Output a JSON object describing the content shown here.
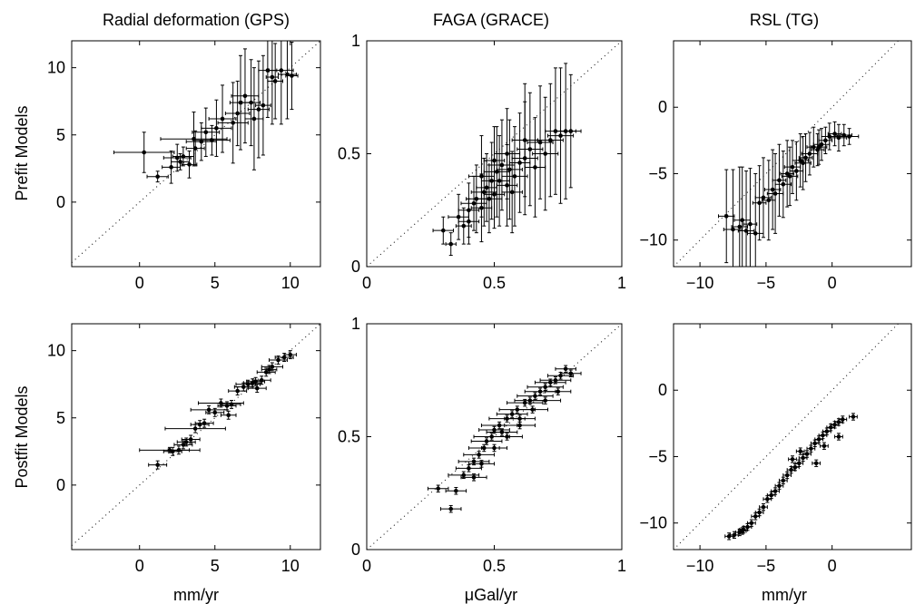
{
  "figure": {
    "row_labels": [
      "Prefit Models",
      "Postfit Models"
    ],
    "col_titles": [
      "Radial deformation (GPS)",
      "FAGA (GRACE)",
      "RSL (TG)"
    ],
    "x_labels": [
      "mm/yr",
      "μGal/yr",
      "mm/yr"
    ]
  },
  "chart_data": [
    {
      "type": "scatter",
      "panel": "prefit-gps",
      "row": 0,
      "col": 0,
      "title": "Radial deformation (GPS)",
      "ylabel": "Prefit Models",
      "xlabel": "",
      "xlim": [
        -4.5,
        12
      ],
      "ylim": [
        -4.8,
        12
      ],
      "xticks": [
        0,
        5,
        10
      ],
      "yticks": [
        0,
        5,
        10
      ],
      "one_to_one_line": true,
      "grid": false,
      "points": [
        [
          1.2,
          1.9,
          0.7,
          0.4
        ],
        [
          0.3,
          3.7,
          2.0,
          1.5
        ],
        [
          2.1,
          2.6,
          0.6,
          1.2
        ],
        [
          2.5,
          3.3,
          0.9,
          1.0
        ],
        [
          2.9,
          3.4,
          0.7,
          0.7
        ],
        [
          3.3,
          2.8,
          0.5,
          1.0
        ],
        [
          3.6,
          4.7,
          2.2,
          2.0
        ],
        [
          4.1,
          4.5,
          1.0,
          1.4
        ],
        [
          4.4,
          5.2,
          0.9,
          1.8
        ],
        [
          4.8,
          4.6,
          1.2,
          1.1
        ],
        [
          5.1,
          5.5,
          1.0,
          2.1
        ],
        [
          5.5,
          6.2,
          0.9,
          2.5
        ],
        [
          6.2,
          5.9,
          1.0,
          3.0
        ],
        [
          6.5,
          6.6,
          0.8,
          2.4
        ],
        [
          7.0,
          7.9,
          0.9,
          3.5
        ],
        [
          7.4,
          7.4,
          0.6,
          3.2
        ],
        [
          7.6,
          6.2,
          0.6,
          3.8
        ],
        [
          7.9,
          6.9,
          0.7,
          3.6
        ],
        [
          8.2,
          7.2,
          0.5,
          3.7
        ],
        [
          8.5,
          9.8,
          0.6,
          3.5
        ],
        [
          8.8,
          9.3,
          0.4,
          3.5
        ],
        [
          9.0,
          9.0,
          0.5,
          2.8
        ],
        [
          9.4,
          9.8,
          0.8,
          4.0
        ],
        [
          9.8,
          9.5,
          0.6,
          3.3
        ],
        [
          10.1,
          9.4,
          0.4,
          2.5
        ],
        [
          6.7,
          7.4,
          0.7,
          3.5
        ],
        [
          3.7,
          4.0,
          0.6,
          1.3
        ],
        [
          2.7,
          3.0,
          0.6,
          0.6
        ]
      ]
    },
    {
      "type": "scatter",
      "panel": "prefit-grace",
      "row": 0,
      "col": 1,
      "title": "FAGA (GRACE)",
      "ylabel": "",
      "xlabel": "",
      "xlim": [
        0,
        1
      ],
      "ylim": [
        0,
        1
      ],
      "xticks": [
        0,
        0.5,
        1
      ],
      "yticks": [
        0,
        0.5,
        1
      ],
      "ytick_labels": [
        "0",
        "0.5",
        "1"
      ],
      "xtick_labels": [
        "0",
        "0.5",
        "1"
      ],
      "one_to_one_line": true,
      "grid": false,
      "points": [
        [
          0.3,
          0.16,
          0.04,
          0.06
        ],
        [
          0.33,
          0.1,
          0.02,
          0.05
        ],
        [
          0.36,
          0.22,
          0.04,
          0.1
        ],
        [
          0.38,
          0.18,
          0.03,
          0.08
        ],
        [
          0.4,
          0.25,
          0.04,
          0.12
        ],
        [
          0.42,
          0.28,
          0.05,
          0.12
        ],
        [
          0.43,
          0.3,
          0.04,
          0.15
        ],
        [
          0.45,
          0.26,
          0.04,
          0.15
        ],
        [
          0.46,
          0.33,
          0.05,
          0.15
        ],
        [
          0.47,
          0.35,
          0.04,
          0.15
        ],
        [
          0.48,
          0.3,
          0.05,
          0.15
        ],
        [
          0.49,
          0.38,
          0.04,
          0.17
        ],
        [
          0.5,
          0.32,
          0.04,
          0.15
        ],
        [
          0.51,
          0.42,
          0.05,
          0.2
        ],
        [
          0.52,
          0.38,
          0.04,
          0.2
        ],
        [
          0.53,
          0.45,
          0.05,
          0.2
        ],
        [
          0.55,
          0.36,
          0.04,
          0.18
        ],
        [
          0.56,
          0.43,
          0.05,
          0.22
        ],
        [
          0.58,
          0.4,
          0.05,
          0.22
        ],
        [
          0.6,
          0.46,
          0.04,
          0.22
        ],
        [
          0.62,
          0.48,
          0.05,
          0.25
        ],
        [
          0.64,
          0.52,
          0.05,
          0.25
        ],
        [
          0.66,
          0.44,
          0.04,
          0.22
        ],
        [
          0.68,
          0.55,
          0.05,
          0.25
        ],
        [
          0.7,
          0.5,
          0.05,
          0.25
        ],
        [
          0.72,
          0.56,
          0.05,
          0.25
        ],
        [
          0.74,
          0.6,
          0.04,
          0.28
        ],
        [
          0.76,
          0.58,
          0.05,
          0.3
        ],
        [
          0.78,
          0.6,
          0.04,
          0.3
        ],
        [
          0.8,
          0.6,
          0.04,
          0.25
        ],
        [
          0.45,
          0.4,
          0.05,
          0.18
        ],
        [
          0.55,
          0.5,
          0.05,
          0.2
        ],
        [
          0.62,
          0.56,
          0.05,
          0.25
        ],
        [
          0.5,
          0.47,
          0.04,
          0.15
        ],
        [
          0.4,
          0.2,
          0.04,
          0.1
        ],
        [
          0.57,
          0.33,
          0.04,
          0.18
        ]
      ]
    },
    {
      "type": "scatter",
      "panel": "prefit-tg",
      "row": 0,
      "col": 2,
      "title": "RSL (TG)",
      "ylabel": "",
      "xlabel": "",
      "xlim": [
        -12,
        6
      ],
      "ylim": [
        -12,
        5
      ],
      "xticks": [
        -10,
        -5,
        0
      ],
      "yticks": [
        -10,
        -5,
        0
      ],
      "xtick_labels": [
        "−10",
        "−5",
        "0"
      ],
      "ytick_labels": [
        "−10",
        "−5",
        "0"
      ],
      "one_to_one_line": true,
      "grid": false,
      "points": [
        [
          -8.0,
          -8.2,
          0.6,
          3.5
        ],
        [
          -7.5,
          -9.2,
          0.7,
          4.5
        ],
        [
          -7.0,
          -9.0,
          0.6,
          4.5
        ],
        [
          -6.5,
          -9.3,
          0.6,
          4.5
        ],
        [
          -6.2,
          -8.8,
          0.5,
          4.2
        ],
        [
          -5.8,
          -9.5,
          0.6,
          4.5
        ],
        [
          -5.5,
          -7.2,
          0.5,
          2.8
        ],
        [
          -5.2,
          -6.8,
          0.6,
          3.0
        ],
        [
          -4.8,
          -7.0,
          0.5,
          3.0
        ],
        [
          -4.5,
          -6.2,
          0.6,
          3.0
        ],
        [
          -4.0,
          -5.5,
          0.5,
          2.7
        ],
        [
          -3.7,
          -5.8,
          0.6,
          2.5
        ],
        [
          -3.4,
          -5.0,
          0.5,
          2.5
        ],
        [
          -3.0,
          -4.5,
          0.6,
          2.0
        ],
        [
          -2.7,
          -4.8,
          0.5,
          2.2
        ],
        [
          -2.4,
          -4.0,
          0.6,
          2.0
        ],
        [
          -2.0,
          -3.8,
          0.5,
          1.8
        ],
        [
          -1.7,
          -3.5,
          0.6,
          1.6
        ],
        [
          -1.4,
          -3.0,
          0.5,
          1.5
        ],
        [
          -1.1,
          -3.2,
          0.5,
          1.2
        ],
        [
          -0.8,
          -2.8,
          0.6,
          1.2
        ],
        [
          -0.5,
          -2.5,
          0.5,
          1.0
        ],
        [
          -0.2,
          -2.2,
          0.6,
          1.0
        ],
        [
          0.2,
          -2.0,
          0.5,
          0.9
        ],
        [
          0.5,
          -2.3,
          0.6,
          1.0
        ],
        [
          0.9,
          -2.1,
          0.6,
          0.8
        ],
        [
          1.3,
          -2.2,
          0.7,
          0.6
        ],
        [
          -3.2,
          -5.2,
          0.6,
          2.2
        ],
        [
          -2.2,
          -4.2,
          0.6,
          2.0
        ],
        [
          -1.0,
          -3.0,
          0.6,
          1.3
        ],
        [
          -6.8,
          -8.5,
          0.6,
          4.0
        ],
        [
          -4.3,
          -6.5,
          0.6,
          3.0
        ]
      ]
    },
    {
      "type": "scatter",
      "panel": "postfit-gps",
      "row": 1,
      "col": 0,
      "title": "",
      "ylabel": "Postfit Models",
      "xlabel": "mm/yr",
      "xlim": [
        -4.5,
        12
      ],
      "ylim": [
        -4.8,
        12
      ],
      "xticks": [
        0,
        5,
        10
      ],
      "yticks": [
        0,
        5,
        10
      ],
      "one_to_one_line": true,
      "grid": false,
      "points": [
        [
          1.2,
          1.5,
          0.6,
          0.3
        ],
        [
          2.0,
          2.6,
          2.0,
          0.2
        ],
        [
          2.2,
          2.5,
          0.6,
          0.3
        ],
        [
          2.6,
          2.6,
          0.7,
          0.3
        ],
        [
          2.9,
          3.0,
          0.6,
          0.3
        ],
        [
          3.1,
          3.2,
          0.6,
          0.3
        ],
        [
          3.4,
          3.4,
          0.6,
          0.3
        ],
        [
          3.7,
          4.2,
          2.0,
          0.3
        ],
        [
          4.0,
          4.5,
          0.6,
          0.3
        ],
        [
          4.3,
          4.6,
          0.6,
          0.3
        ],
        [
          4.6,
          5.6,
          1.2,
          0.3
        ],
        [
          5.0,
          5.4,
          0.6,
          0.3
        ],
        [
          5.4,
          6.1,
          1.5,
          0.3
        ],
        [
          5.8,
          5.9,
          0.6,
          0.3
        ],
        [
          6.1,
          6.0,
          0.6,
          0.3
        ],
        [
          6.5,
          7.0,
          0.6,
          0.3
        ],
        [
          6.9,
          7.3,
          0.6,
          0.3
        ],
        [
          7.2,
          7.5,
          0.8,
          0.3
        ],
        [
          7.5,
          7.6,
          0.6,
          0.3
        ],
        [
          7.8,
          7.2,
          0.6,
          0.3
        ],
        [
          8.1,
          7.8,
          0.6,
          0.3
        ],
        [
          8.4,
          8.4,
          0.6,
          0.3
        ],
        [
          8.8,
          8.8,
          0.7,
          0.3
        ],
        [
          9.2,
          9.3,
          0.6,
          0.3
        ],
        [
          9.6,
          9.5,
          0.6,
          0.3
        ],
        [
          10.0,
          9.7,
          0.4,
          0.3
        ],
        [
          5.9,
          5.2,
          0.5,
          0.3
        ],
        [
          7.7,
          7.7,
          0.6,
          0.3
        ],
        [
          8.6,
          8.6,
          0.5,
          0.3
        ]
      ]
    },
    {
      "type": "scatter",
      "panel": "postfit-grace",
      "row": 1,
      "col": 1,
      "title": "",
      "ylabel": "",
      "xlabel": "μGal/yr",
      "xlim": [
        0,
        1
      ],
      "ylim": [
        0,
        1
      ],
      "xticks": [
        0,
        0.5,
        1
      ],
      "yticks": [
        0,
        0.5,
        1
      ],
      "ytick_labels": [
        "0",
        "0.5",
        "1"
      ],
      "xtick_labels": [
        "0",
        "0.5",
        "1"
      ],
      "one_to_one_line": true,
      "grid": false,
      "points": [
        [
          0.28,
          0.27,
          0.04,
          0.015
        ],
        [
          0.33,
          0.18,
          0.04,
          0.015
        ],
        [
          0.35,
          0.26,
          0.04,
          0.015
        ],
        [
          0.38,
          0.33,
          0.06,
          0.015
        ],
        [
          0.4,
          0.36,
          0.05,
          0.015
        ],
        [
          0.42,
          0.39,
          0.06,
          0.015
        ],
        [
          0.44,
          0.42,
          0.06,
          0.015
        ],
        [
          0.46,
          0.45,
          0.06,
          0.015
        ],
        [
          0.47,
          0.48,
          0.06,
          0.015
        ],
        [
          0.49,
          0.5,
          0.07,
          0.015
        ],
        [
          0.5,
          0.53,
          0.06,
          0.015
        ],
        [
          0.52,
          0.55,
          0.07,
          0.015
        ],
        [
          0.53,
          0.52,
          0.06,
          0.015
        ],
        [
          0.55,
          0.58,
          0.07,
          0.015
        ],
        [
          0.57,
          0.6,
          0.06,
          0.015
        ],
        [
          0.59,
          0.62,
          0.07,
          0.015
        ],
        [
          0.6,
          0.58,
          0.06,
          0.015
        ],
        [
          0.62,
          0.65,
          0.07,
          0.015
        ],
        [
          0.64,
          0.66,
          0.06,
          0.015
        ],
        [
          0.66,
          0.68,
          0.07,
          0.015
        ],
        [
          0.68,
          0.7,
          0.06,
          0.015
        ],
        [
          0.7,
          0.72,
          0.07,
          0.015
        ],
        [
          0.72,
          0.74,
          0.06,
          0.015
        ],
        [
          0.74,
          0.75,
          0.06,
          0.015
        ],
        [
          0.76,
          0.77,
          0.05,
          0.015
        ],
        [
          0.78,
          0.8,
          0.04,
          0.015
        ],
        [
          0.8,
          0.78,
          0.04,
          0.015
        ],
        [
          0.45,
          0.38,
          0.05,
          0.015
        ],
        [
          0.55,
          0.5,
          0.06,
          0.015
        ],
        [
          0.65,
          0.62,
          0.06,
          0.015
        ],
        [
          0.5,
          0.45,
          0.05,
          0.015
        ],
        [
          0.6,
          0.55,
          0.06,
          0.015
        ],
        [
          0.7,
          0.66,
          0.06,
          0.015
        ],
        [
          0.42,
          0.32,
          0.05,
          0.015
        ],
        [
          0.75,
          0.7,
          0.05,
          0.015
        ]
      ]
    },
    {
      "type": "scatter",
      "panel": "postfit-tg",
      "row": 1,
      "col": 2,
      "title": "",
      "ylabel": "",
      "xlabel": "mm/yr",
      "xlim": [
        -12,
        6
      ],
      "ylim": [
        -12,
        5
      ],
      "xticks": [
        -10,
        -5,
        0
      ],
      "yticks": [
        -10,
        -5,
        0
      ],
      "xtick_labels": [
        "−10",
        "−5",
        "0"
      ],
      "ytick_labels": [
        "−10",
        "−5",
        "0"
      ],
      "one_to_one_line": true,
      "grid": false,
      "points": [
        [
          -7.8,
          -11.0,
          0.3,
          0.25
        ],
        [
          -7.4,
          -10.9,
          0.3,
          0.25
        ],
        [
          -7.0,
          -10.7,
          0.3,
          0.25
        ],
        [
          -6.7,
          -10.5,
          0.3,
          0.25
        ],
        [
          -6.4,
          -10.3,
          0.3,
          0.25
        ],
        [
          -6.1,
          -10.0,
          0.3,
          0.25
        ],
        [
          -5.8,
          -9.5,
          0.3,
          0.25
        ],
        [
          -5.5,
          -9.2,
          0.3,
          0.25
        ],
        [
          -5.2,
          -8.8,
          0.3,
          0.25
        ],
        [
          -4.9,
          -8.2,
          0.3,
          0.25
        ],
        [
          -4.6,
          -7.9,
          0.3,
          0.25
        ],
        [
          -4.3,
          -7.6,
          0.3,
          0.25
        ],
        [
          -4.0,
          -7.2,
          0.3,
          0.25
        ],
        [
          -3.7,
          -6.8,
          0.3,
          0.25
        ],
        [
          -3.4,
          -6.4,
          0.3,
          0.25
        ],
        [
          -3.1,
          -6.0,
          0.3,
          0.25
        ],
        [
          -2.8,
          -5.8,
          0.3,
          0.25
        ],
        [
          -2.5,
          -5.5,
          0.3,
          0.25
        ],
        [
          -2.2,
          -5.1,
          0.3,
          0.25
        ],
        [
          -1.9,
          -4.8,
          0.3,
          0.25
        ],
        [
          -1.6,
          -4.4,
          0.3,
          0.25
        ],
        [
          -1.3,
          -4.0,
          0.3,
          0.25
        ],
        [
          -1.0,
          -3.7,
          0.3,
          0.25
        ],
        [
          -0.7,
          -3.4,
          0.3,
          0.25
        ],
        [
          -0.4,
          -3.1,
          0.3,
          0.25
        ],
        [
          -0.1,
          -2.8,
          0.3,
          0.25
        ],
        [
          0.2,
          -2.6,
          0.3,
          0.25
        ],
        [
          0.5,
          -2.4,
          0.3,
          0.25
        ],
        [
          0.8,
          -2.2,
          0.3,
          0.25
        ],
        [
          1.6,
          -2.0,
          0.3,
          0.25
        ],
        [
          -3.0,
          -5.2,
          0.3,
          0.25
        ],
        [
          -2.4,
          -4.6,
          0.3,
          0.25
        ],
        [
          -1.2,
          -5.5,
          0.3,
          0.25
        ],
        [
          -0.6,
          -4.2,
          0.3,
          0.25
        ],
        [
          0.5,
          -3.5,
          0.3,
          0.25
        ],
        [
          -6.8,
          -10.6,
          0.3,
          0.25
        ]
      ]
    }
  ]
}
